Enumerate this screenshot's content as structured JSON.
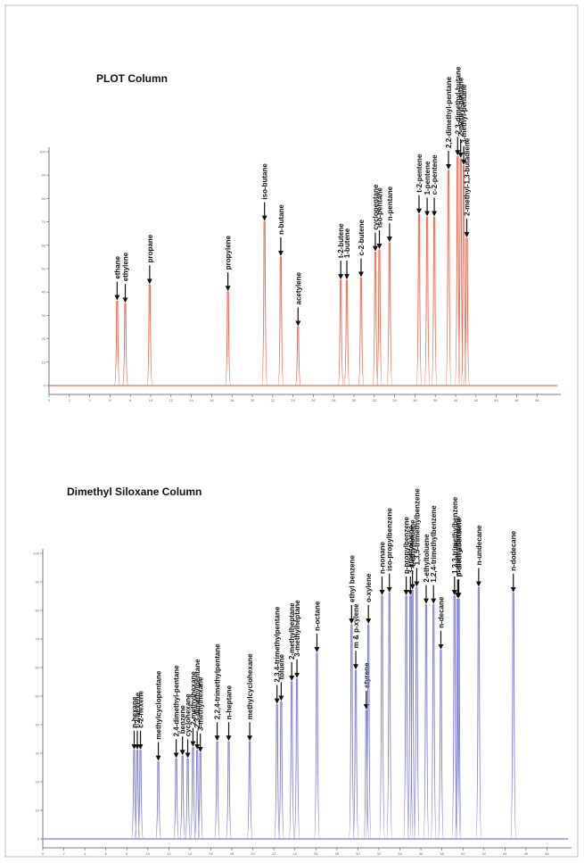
{
  "chart_data": [
    {
      "type": "chromatogram",
      "title": "PLOT Column",
      "color": "#e8674f",
      "labels": [
        "ethane",
        "ethylene",
        "propane",
        "propylene",
        "iso-butane",
        "n-butane",
        "acetylene",
        "t-2-butene",
        "1-butene",
        "c-2-butene",
        "cyclopentane",
        "iso-pentane",
        "n-pentane",
        "t-2-pentene",
        "1-pentene",
        "c-2-pentene",
        "2,2-dimethyl-pentane",
        "2,3-dimethyl-butane",
        "2-methyl-pentane",
        "3-methyl-pentane",
        "2-methyl-1,3-butadiene"
      ],
      "x": [
        6.7,
        7.5,
        9.9,
        17.6,
        21.2,
        22.8,
        24.5,
        28.7,
        29.3,
        30.7,
        32.1,
        32.5,
        33.5,
        36.4,
        37.2,
        37.9,
        39.3,
        40.2,
        40.5,
        40.8,
        41.1
      ],
      "values": [
        36,
        35,
        43,
        40,
        70,
        55,
        25,
        45,
        45,
        46,
        57,
        58,
        61,
        73,
        72,
        72,
        92,
        98,
        97,
        94,
        63
      ],
      "xlim": [
        0,
        50
      ],
      "ylim": [
        0,
        100
      ],
      "xticks": [
        0,
        2,
        4,
        6,
        8,
        10,
        12,
        14,
        16,
        18,
        20,
        22,
        24,
        26,
        28,
        30,
        32,
        34,
        36,
        38,
        40,
        42,
        44,
        46,
        48
      ],
      "yticks": [
        0,
        10,
        20,
        30,
        40,
        50,
        60,
        70,
        80,
        90,
        100
      ]
    },
    {
      "type": "chromatogram",
      "title": "Dimethyl Siloxane Column",
      "color": "#7b7bd6",
      "labels": [
        "n-hexane",
        "t-2-hexene",
        "c-2-hexene",
        "methylcyclopentane",
        "2,4-dimethyl-pentane",
        "benzene",
        "cyclohexane",
        "2-methylhexane",
        "2,3-dimethylpentane",
        "3-methylhexane",
        "2,2,4-trimethylpentane",
        "n-heptane",
        "methylcyclohexane",
        "2,3,4-trimethylpentane",
        "toluene",
        "2-methylheptane",
        "3-methylheptane",
        "n-octane",
        "ethyl benzene",
        "m & p-xylene",
        "styrene",
        "o-xylene",
        "n-nonane",
        "iso-propylbenzene",
        "n-propylbenzene",
        "3-ethyltoluene",
        "4-ethyltoluene",
        "1,3,5-trimethylbenzene",
        "2-ethyltoluene",
        "1,2,4-trimethylbenzene",
        "n-decane",
        "1,2,3-trimethylbenzene",
        "m-diethylbenzene",
        "p-diethylbenzene",
        "n-undecane",
        "n-dodecane"
      ],
      "x": [
        8.7,
        9.0,
        9.3,
        11.0,
        12.7,
        13.3,
        13.8,
        14.3,
        14.7,
        15.0,
        16.6,
        17.7,
        19.7,
        22.3,
        22.7,
        23.7,
        24.2,
        26.1,
        29.4,
        29.8,
        30.8,
        31.0,
        32.3,
        33.0,
        34.6,
        35.0,
        35.2,
        35.6,
        36.5,
        37.2,
        37.9,
        39.2,
        39.5,
        39.6,
        41.5,
        44.8
      ],
      "values": [
        31,
        31,
        31,
        27,
        28,
        29,
        28,
        32,
        31,
        30,
        34,
        34,
        34,
        47,
        48,
        55,
        56,
        65,
        75,
        59,
        45,
        75,
        85,
        86,
        85,
        85,
        87,
        88,
        82,
        82,
        66,
        85,
        84,
        84,
        88,
        86
      ],
      "xlim": [
        0,
        50
      ],
      "ylim": [
        0,
        100
      ],
      "xticks": [
        0,
        2,
        4,
        6,
        8,
        10,
        12,
        14,
        16,
        18,
        20,
        22,
        24,
        26,
        28,
        30,
        32,
        34,
        36,
        38,
        40,
        42,
        44,
        46,
        48
      ],
      "yticks": [
        0,
        10,
        20,
        30,
        40,
        50,
        60,
        70,
        80,
        90,
        100
      ]
    }
  ]
}
